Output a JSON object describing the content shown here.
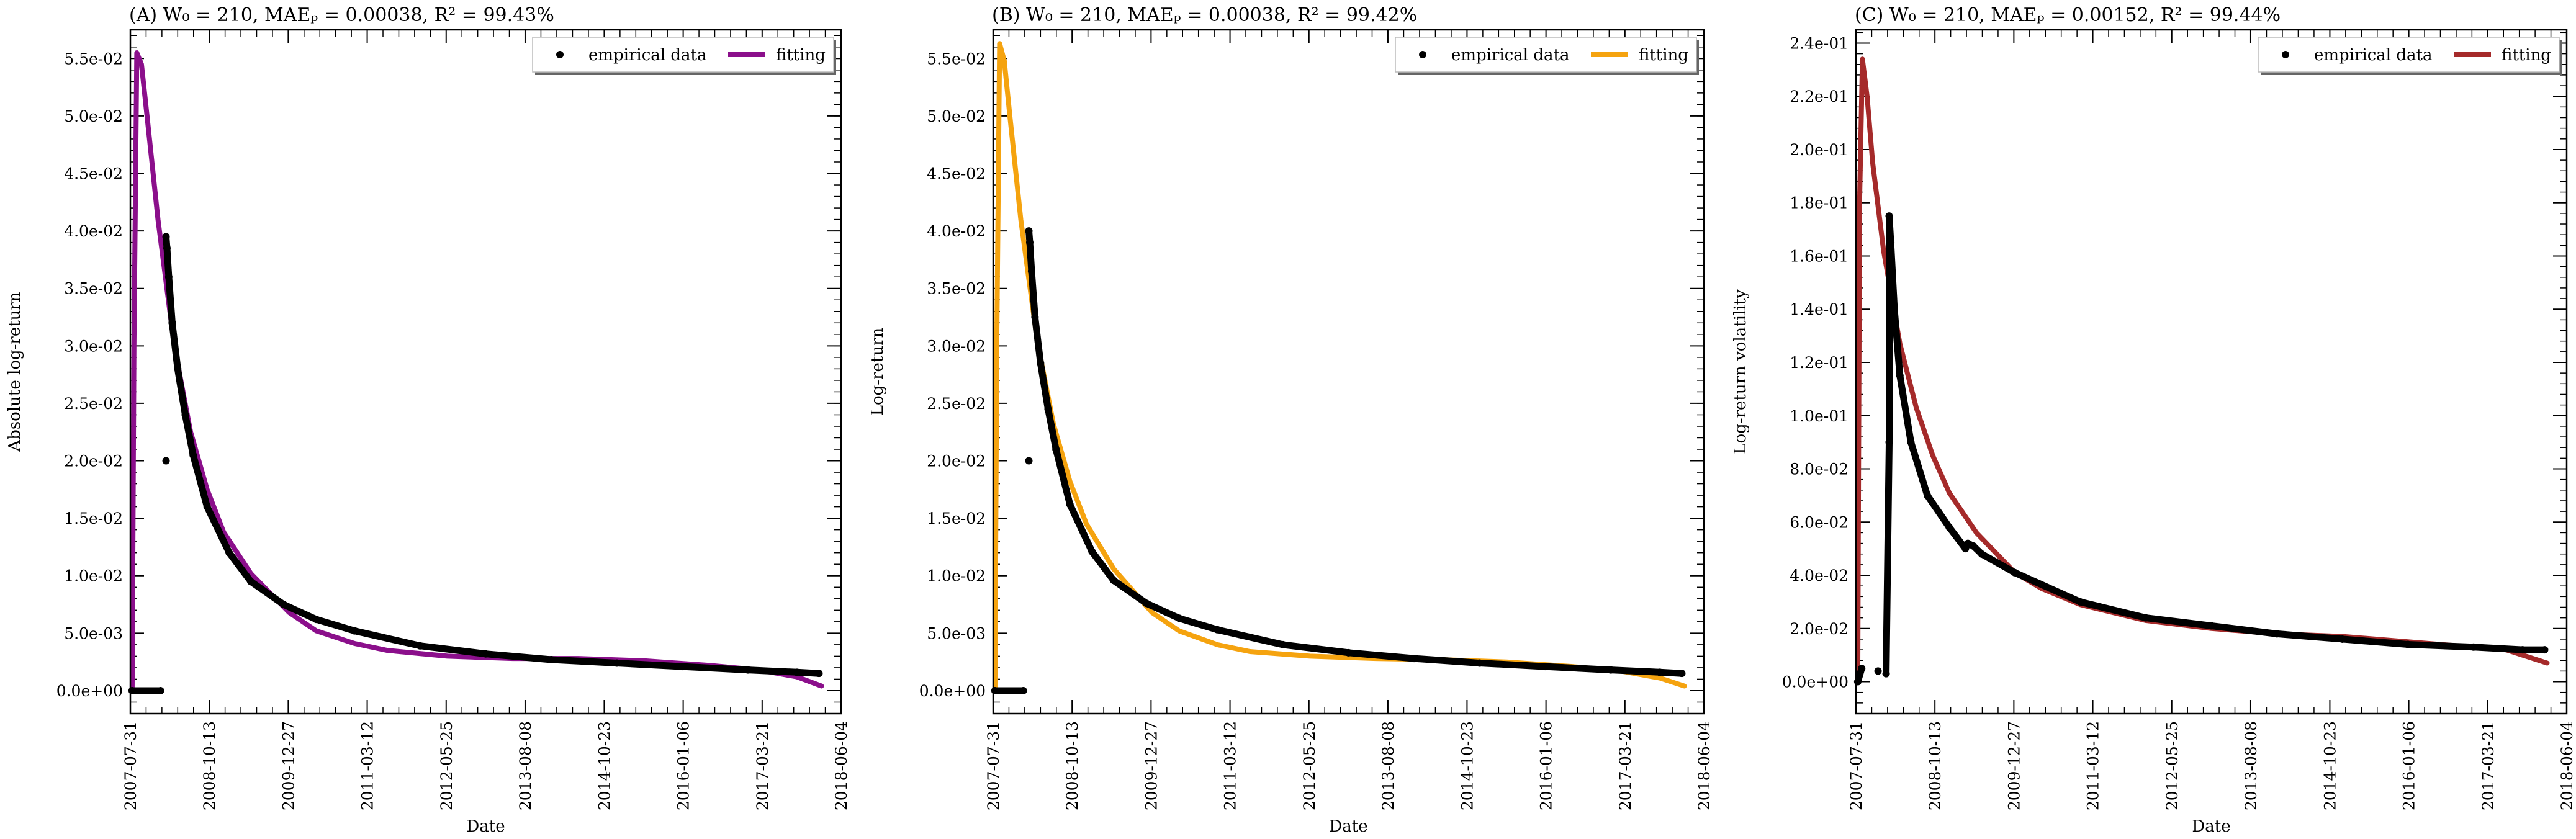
{
  "chart_data": [
    {
      "type": "line",
      "title_prefix": "(A)",
      "title": "W₀ = 210,  MAEₚ = 0.00038,  R² = 99.43%",
      "xlabel": "Date",
      "ylabel": "Absolute log-return",
      "ylim": [
        -0.002,
        0.0575
      ],
      "y_ticks": [
        0,
        0.005,
        0.01,
        0.015,
        0.02,
        0.025,
        0.03,
        0.035,
        0.04,
        0.045,
        0.05,
        0.055
      ],
      "y_tick_labels": [
        "0.0e+00",
        "5.0e-03",
        "1.0e-02",
        "1.5e-02",
        "2.0e-02",
        "2.5e-02",
        "3.0e-02",
        "3.5e-02",
        "4.0e-02",
        "4.5e-02",
        "5.0e-02",
        "5.5e-02"
      ],
      "xlim": [
        "2007-07-31",
        "2018-06-04"
      ],
      "x_tick_labels": [
        "2007-07-31",
        "2008-10-13",
        "2009-12-27",
        "2011-03-12",
        "2012-05-25",
        "2013-08-08",
        "2014-10-23",
        "2016-01-06",
        "2017-03-21",
        "2018-06-04"
      ],
      "legend": {
        "placement": "top-right",
        "entries": [
          "empirical data",
          "fitting"
        ]
      },
      "colors": {
        "empirical": "#000000",
        "fit": "#8b0f8b"
      },
      "series": [
        {
          "name": "empirical data",
          "kind": "scatter",
          "x": [
            "2007-08-10",
            "2008-01-15",
            "2008-02-15",
            "2008-02-15",
            "2008-02-20",
            "2008-03-01",
            "2008-03-20",
            "2008-04-20",
            "2008-06-01",
            "2008-07-15",
            "2008-10-01",
            "2009-02-01",
            "2009-06-01",
            "2009-12-01",
            "2010-06-01",
            "2011-01-01",
            "2012-01-01",
            "2013-01-01",
            "2014-01-01",
            "2015-01-01",
            "2016-01-01",
            "2017-01-01",
            "2017-10-01",
            "2018-02-01"
          ],
          "y": [
            0,
            0,
            0.02,
            0.0395,
            0.0385,
            0.036,
            0.032,
            0.028,
            0.024,
            0.0205,
            0.016,
            0.012,
            0.0095,
            0.0075,
            0.0062,
            0.0052,
            0.0039,
            0.0032,
            0.0027,
            0.0024,
            0.0021,
            0.0018,
            0.0016,
            0.0015
          ]
        },
        {
          "name": "fitting",
          "kind": "line",
          "x": [
            "2007-08-10",
            "2007-08-20",
            "2007-09-05",
            "2007-10-01",
            "2007-11-01",
            "2008-01-01",
            "2008-04-01",
            "2008-07-01",
            "2008-10-01",
            "2009-01-01",
            "2009-06-01",
            "2010-01-01",
            "2010-06-01",
            "2011-01-01",
            "2011-07-01",
            "2012-06-01",
            "2013-06-01",
            "2014-06-01",
            "2015-06-01",
            "2016-06-01",
            "2017-03-01",
            "2017-10-01",
            "2018-02-15"
          ],
          "y": [
            0,
            0.03,
            0.0555,
            0.0545,
            0.05,
            0.041,
            0.03,
            0.0225,
            0.0175,
            0.0138,
            0.0102,
            0.0068,
            0.0052,
            0.0041,
            0.0035,
            0.003,
            0.0028,
            0.0028,
            0.0026,
            0.0022,
            0.0018,
            0.0012,
            0.0004
          ]
        }
      ]
    },
    {
      "type": "line",
      "title_prefix": "(B)",
      "title": "W₀ = 210,  MAEₚ = 0.00038,  R² = 99.42%",
      "xlabel": "Date",
      "ylabel": "Log-return",
      "ylim": [
        -0.002,
        0.0575
      ],
      "y_ticks": [
        0,
        0.005,
        0.01,
        0.015,
        0.02,
        0.025,
        0.03,
        0.035,
        0.04,
        0.045,
        0.05,
        0.055
      ],
      "y_tick_labels": [
        "0.0e+00",
        "5.0e-03",
        "1.0e-02",
        "1.5e-02",
        "2.0e-02",
        "2.5e-02",
        "3.0e-02",
        "3.5e-02",
        "4.0e-02",
        "4.5e-02",
        "5.0e-02",
        "5.5e-02"
      ],
      "xlim": [
        "2007-07-31",
        "2018-06-04"
      ],
      "x_tick_labels": [
        "2007-07-31",
        "2008-10-13",
        "2009-12-27",
        "2011-03-12",
        "2012-05-25",
        "2013-08-08",
        "2014-10-23",
        "2016-01-06",
        "2017-03-21",
        "2018-06-04"
      ],
      "legend": {
        "placement": "top-right",
        "entries": [
          "empirical data",
          "fitting"
        ]
      },
      "colors": {
        "empirical": "#000000",
        "fit": "#f5a30f"
      },
      "series": [
        {
          "name": "empirical data",
          "kind": "scatter",
          "x": [
            "2007-08-10",
            "2008-01-15",
            "2008-02-15",
            "2008-02-15",
            "2008-02-20",
            "2008-03-01",
            "2008-03-20",
            "2008-04-20",
            "2008-06-01",
            "2008-07-15",
            "2008-10-01",
            "2009-02-01",
            "2009-06-01",
            "2009-12-01",
            "2010-06-01",
            "2011-01-01",
            "2012-01-01",
            "2013-01-01",
            "2014-01-01",
            "2015-01-01",
            "2016-01-01",
            "2017-01-01",
            "2017-10-01",
            "2018-02-01"
          ],
          "y": [
            0,
            0,
            0.02,
            0.04,
            0.039,
            0.0365,
            0.0325,
            0.0285,
            0.0245,
            0.021,
            0.0162,
            0.0121,
            0.0096,
            0.0076,
            0.0063,
            0.0053,
            0.004,
            0.0033,
            0.0028,
            0.0024,
            0.0021,
            0.0018,
            0.0016,
            0.0015
          ]
        },
        {
          "name": "fitting",
          "kind": "line",
          "x": [
            "2007-08-10",
            "2007-08-20",
            "2007-09-05",
            "2007-10-01",
            "2007-11-01",
            "2008-01-01",
            "2008-04-01",
            "2008-07-01",
            "2008-10-01",
            "2009-01-01",
            "2009-06-01",
            "2010-01-01",
            "2010-06-01",
            "2011-01-01",
            "2011-07-01",
            "2012-06-01",
            "2013-06-01",
            "2014-06-01",
            "2015-06-01",
            "2016-06-01",
            "2017-03-01",
            "2017-10-01",
            "2018-02-15"
          ],
          "y": [
            0,
            0.03,
            0.0563,
            0.0548,
            0.05,
            0.041,
            0.0305,
            0.0232,
            0.0182,
            0.0145,
            0.0106,
            0.0068,
            0.0052,
            0.004,
            0.0034,
            0.003,
            0.0028,
            0.0027,
            0.0025,
            0.0021,
            0.0017,
            0.0011,
            0.0004
          ]
        }
      ]
    },
    {
      "type": "line",
      "title_prefix": "(C)",
      "title": "W₀ = 210,  MAEₚ = 0.00152,  R² = 99.44%",
      "xlabel": "Date",
      "ylabel": "Log-return volatility",
      "ylim": [
        -0.012,
        0.245
      ],
      "y_ticks": [
        0,
        0.02,
        0.04,
        0.06,
        0.08,
        0.1,
        0.12,
        0.14,
        0.16,
        0.18,
        0.2,
        0.22,
        0.24
      ],
      "y_tick_labels": [
        "0.0e+00",
        "2.0e-02",
        "4.0e-02",
        "6.0e-02",
        "8.0e-02",
        "1.0e-01",
        "1.2e-01",
        "1.4e-01",
        "1.6e-01",
        "1.8e-01",
        "2.0e-01",
        "2.2e-01",
        "2.4e-01"
      ],
      "xlim": [
        "2007-07-31",
        "2018-06-04"
      ],
      "x_tick_labels": [
        "2007-07-31",
        "2008-10-13",
        "2009-12-27",
        "2011-03-12",
        "2012-05-25",
        "2013-08-08",
        "2014-10-23",
        "2016-01-06",
        "2017-03-21",
        "2018-06-04"
      ],
      "legend": {
        "placement": "top-right",
        "entries": [
          "empirical data",
          "fitting"
        ]
      },
      "colors": {
        "empirical": "#000000",
        "fit": "#a52a2a"
      },
      "series": [
        {
          "name": "empirical data",
          "kind": "scatter",
          "x": [
            "2007-08-10",
            "2007-09-01",
            "2007-12-01",
            "2008-01-15",
            "2008-02-01",
            "2008-02-01",
            "2008-02-10",
            "2008-03-01",
            "2008-04-01",
            "2008-06-01",
            "2008-09-01",
            "2009-01-01",
            "2009-04-01",
            "2009-04-15",
            "2009-05-15",
            "2009-07-01",
            "2010-01-01",
            "2011-01-01",
            "2012-01-01",
            "2013-01-01",
            "2014-01-01",
            "2015-01-01",
            "2016-01-01",
            "2017-01-01",
            "2017-10-01",
            "2018-02-01"
          ],
          "y": [
            0,
            0.005,
            0.004,
            0.003,
            0.09,
            0.175,
            0.165,
            0.14,
            0.115,
            0.09,
            0.07,
            0.058,
            0.05,
            0.052,
            0.051,
            0.048,
            0.041,
            0.03,
            0.024,
            0.021,
            0.018,
            0.016,
            0.014,
            0.013,
            0.012,
            0.012
          ]
        },
        {
          "name": "fitting",
          "kind": "line",
          "x": [
            "2007-08-10",
            "2007-08-20",
            "2007-09-05",
            "2007-10-01",
            "2007-11-01",
            "2008-01-01",
            "2008-04-01",
            "2008-07-01",
            "2008-10-01",
            "2009-01-01",
            "2009-06-01",
            "2010-01-01",
            "2010-06-01",
            "2011-01-01",
            "2012-01-01",
            "2013-01-01",
            "2014-01-01",
            "2015-01-01",
            "2016-01-01",
            "2017-01-01",
            "2017-07-01",
            "2018-02-15"
          ],
          "y": [
            0,
            0.18,
            0.234,
            0.22,
            0.195,
            0.162,
            0.127,
            0.103,
            0.085,
            0.071,
            0.056,
            0.041,
            0.035,
            0.029,
            0.023,
            0.02,
            0.018,
            0.017,
            0.015,
            0.013,
            0.012,
            0.007
          ]
        }
      ]
    }
  ]
}
